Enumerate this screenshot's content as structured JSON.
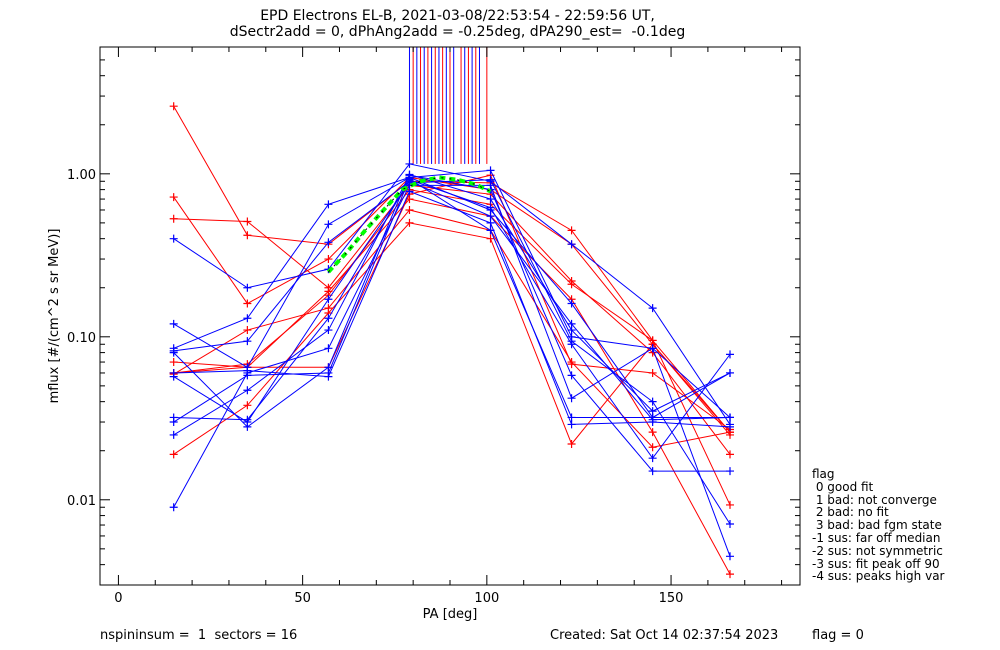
{
  "title_line1": "EPD Electrons EL-B, 2021-03-08/22:53:54 - 22:59:56 UT,",
  "title_line2": "dSectr2add = 0, dPhAng2add = -0.25deg, dPA290_est=  -0.1deg",
  "footer": {
    "left": "nspininsum =  1  sectors = 16",
    "created": "Created: Sat Oct 14 02:37:54 2023",
    "flag": "flag = 0"
  },
  "legend": {
    "title": "flag",
    "items": [
      " 0 good fit",
      " 1 bad: not converge",
      " 2 bad: no fit",
      " 3 bad: bad fgm state",
      "-1 sus: far off median",
      "-2 sus: not symmetric",
      "-3 sus: fit peak off 90",
      "-4 sus: peaks high var"
    ]
  },
  "colors": {
    "red": "#ff0000",
    "blue": "#0000ff",
    "fit": "#00ff00",
    "axis": "#000000"
  },
  "chart_data": {
    "type": "line",
    "xlabel": "PA [deg]",
    "ylabel": "mflux [#/(cm^2 s sr MeV)]",
    "xlim": [
      -5,
      185
    ],
    "ylim": [
      0.003,
      6
    ],
    "yscale": "log",
    "xticks": [
      "0",
      "50",
      "100",
      "150"
    ],
    "yticks": [
      "0.01",
      "0.10",
      "1.00"
    ],
    "pa": [
      15,
      35,
      57,
      79,
      101,
      123,
      145,
      166
    ],
    "series": [
      {
        "color": "red",
        "values": [
          2.6,
          0.42,
          0.37,
          0.9,
          0.88,
          0.45,
          0.095,
          0.026
        ]
      },
      {
        "color": "red",
        "values": [
          0.72,
          0.16,
          0.3,
          0.95,
          0.8,
          0.37,
          0.09,
          0.025
        ]
      },
      {
        "color": "red",
        "values": [
          0.53,
          0.51,
          0.2,
          0.85,
          0.75,
          0.22,
          0.08,
          0.019
        ]
      },
      {
        "color": "red",
        "values": [
          0.06,
          0.068,
          0.18,
          0.8,
          0.65,
          0.21,
          0.095,
          0.0093
        ]
      },
      {
        "color": "red",
        "values": [
          0.07,
          0.065,
          0.19,
          0.7,
          0.55,
          0.17,
          0.026,
          0.0035
        ]
      },
      {
        "color": "red",
        "values": [
          0.059,
          0.11,
          0.15,
          0.6,
          0.45,
          0.07,
          0.021,
          0.026
        ]
      },
      {
        "color": "red",
        "values": [
          0.019,
          0.038,
          0.14,
          0.5,
          0.4,
          0.022,
          0.09,
          0.026
        ]
      },
      {
        "color": "red",
        "values": [
          0.06,
          0.065,
          0.065,
          0.75,
          0.98,
          0.068,
          0.06,
          0.027
        ]
      },
      {
        "color": "blue",
        "values": [
          0.4,
          0.2,
          0.26,
          1.15,
          0.9,
          0.37,
          0.15,
          0.029
        ]
      },
      {
        "color": "blue",
        "values": [
          0.12,
          0.065,
          0.49,
          0.95,
          1.05,
          0.1,
          0.085,
          0.0045
        ]
      },
      {
        "color": "blue",
        "values": [
          0.085,
          0.13,
          0.65,
          0.95,
          0.6,
          0.16,
          0.032,
          0.06
        ]
      },
      {
        "color": "blue",
        "values": [
          0.082,
          0.094,
          0.38,
          0.9,
          0.55,
          0.12,
          0.031,
          0.032
        ]
      },
      {
        "color": "blue",
        "values": [
          0.057,
          0.03,
          0.17,
          0.88,
          0.92,
          0.094,
          0.04,
          0.0071
        ]
      },
      {
        "color": "blue",
        "values": [
          0.032,
          0.031,
          0.13,
          0.92,
          0.62,
          0.09,
          0.018,
          0.078
        ]
      },
      {
        "color": "blue",
        "values": [
          0.025,
          0.047,
          0.11,
          0.98,
          0.8,
          0.058,
          0.015,
          0.015
        ]
      },
      {
        "color": "blue",
        "values": [
          0.009,
          0.06,
          0.085,
          0.85,
          0.85,
          0.042,
          0.085,
          0.032
        ]
      },
      {
        "color": "blue",
        "values": [
          0.03,
          0.058,
          0.06,
          0.93,
          0.45,
          0.032,
          0.032,
          0.032
        ]
      },
      {
        "color": "blue",
        "values": [
          0.06,
          0.062,
          0.057,
          0.78,
          0.5,
          0.029,
          0.03,
          0.028
        ]
      },
      {
        "color": "blue",
        "values": [
          0.08,
          0.028,
          0.065,
          0.99,
          0.7,
          0.11,
          0.035,
          0.06
        ]
      }
    ],
    "fit": {
      "color": "#00ff00",
      "x": [
        57,
        62,
        67,
        72,
        77,
        82,
        87,
        92,
        97,
        101
      ],
      "y": [
        0.25,
        0.33,
        0.45,
        0.6,
        0.8,
        0.9,
        0.95,
        0.92,
        0.86,
        0.78
      ]
    },
    "spikes": {
      "red_x": [
        80,
        82,
        84,
        86,
        88,
        90,
        93,
        95,
        97,
        100
      ],
      "blue_x": [
        79,
        81,
        83,
        85,
        87,
        89,
        91,
        94,
        96,
        98
      ],
      "top_value": 6,
      "bottom_value": 1.15
    }
  }
}
